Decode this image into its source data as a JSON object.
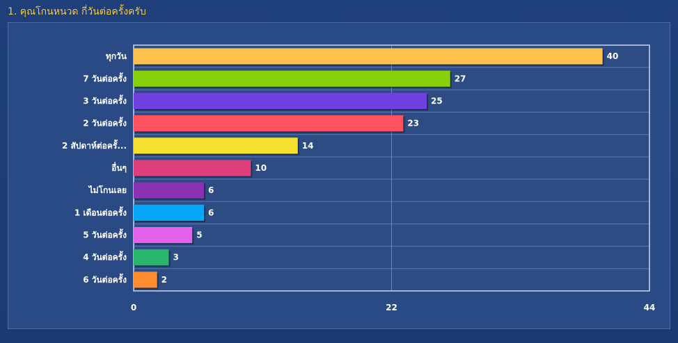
{
  "header": {
    "title": "1. คุณโกนหนวด กี่วันต่อครั้งครับ"
  },
  "chart_data": {
    "type": "bar",
    "orientation": "horizontal",
    "title": "1. คุณโกนหนวด กี่วันต่อครั้งครับ",
    "categories": [
      "ทุกวัน",
      "7 วันต่อครั้ง",
      "3 วันต่อครั้ง",
      "2 วันต่อครั้ง",
      "2 สัปดาห์ต่อครั้...",
      "อื่นๆ",
      "ไม่โกนเลย",
      "1 เดือนต่อครั้ง",
      "5 วันต่อครั้ง",
      "4 วันต่อครั้ง",
      "6 วันต่อครั้ง"
    ],
    "values": [
      40,
      27,
      25,
      23,
      14,
      10,
      6,
      6,
      5,
      3,
      2
    ],
    "colors": [
      "#ffc24f",
      "#86d10c",
      "#6f41e0",
      "#ff5260",
      "#f5e02d",
      "#de3f7a",
      "#8a31b4",
      "#06a6f9",
      "#e262e9",
      "#27b66b",
      "#ff8c2f"
    ],
    "xlim": [
      0,
      44
    ],
    "xticks": [
      "0",
      "22",
      "44"
    ],
    "grid": true,
    "legend": "none",
    "xlabel": "",
    "ylabel": ""
  }
}
